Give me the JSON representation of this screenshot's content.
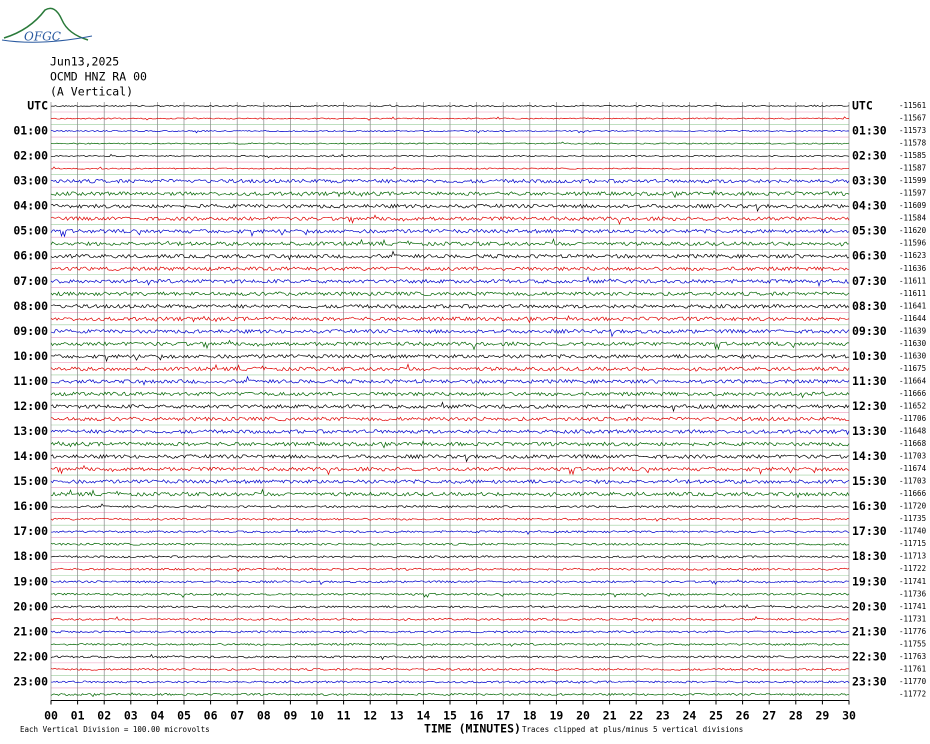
{
  "logo": "OFGC",
  "header": {
    "date": "Jun13,2025",
    "station": "OCMD HNZ RA 00",
    "component": "(A Vertical)"
  },
  "left_labels": [
    "UTC",
    "01:00",
    "02:00",
    "03:00",
    "04:00",
    "05:00",
    "06:00",
    "07:00",
    "08:00",
    "09:00",
    "10:00",
    "11:00",
    "12:00",
    "13:00",
    "14:00",
    "15:00",
    "16:00",
    "17:00",
    "18:00",
    "19:00",
    "20:00",
    "21:00",
    "22:00",
    "23:00"
  ],
  "right_labels": [
    "UTC",
    "01:30",
    "02:30",
    "03:30",
    "04:30",
    "05:30",
    "06:30",
    "07:30",
    "08:30",
    "09:30",
    "10:30",
    "11:30",
    "12:30",
    "13:30",
    "14:30",
    "15:30",
    "16:30",
    "17:30",
    "18:30",
    "19:30",
    "20:30",
    "21:30",
    "22:30",
    "23:30"
  ],
  "row_values": [
    -11561,
    -11567,
    -11573,
    -11578,
    -11585,
    -11587,
    -11599,
    -11597,
    -11609,
    -11584,
    -11620,
    -11596,
    -11623,
    -11636,
    -11611,
    -11611,
    -11641,
    -11644,
    -11639,
    -11630,
    -11630,
    -11675,
    -11664,
    -11666,
    -11652,
    -11706,
    -11648,
    -11668,
    -11703,
    -11674,
    -11703,
    -11666,
    -11720,
    -11735,
    -11740,
    -11715,
    -11713,
    -11722,
    -11741,
    -11736,
    -11741,
    -11731,
    -11776,
    -11755,
    -11763,
    -11761,
    -11770,
    -11772
  ],
  "trace_colors": [
    "#000000",
    "#e00000",
    "#0000cc",
    "#006600"
  ],
  "xaxis": {
    "ticks": [
      "00",
      "01",
      "02",
      "03",
      "04",
      "05",
      "06",
      "07",
      "08",
      "09",
      "10",
      "11",
      "12",
      "13",
      "14",
      "15",
      "16",
      "17",
      "18",
      "19",
      "20",
      "21",
      "22",
      "23",
      "24",
      "25",
      "26",
      "27",
      "28",
      "29",
      "30"
    ],
    "label": "TIME (MINUTES)"
  },
  "footer": {
    "scale": "Each Vertical Division =  100.00 microvolts",
    "clip": "Traces clipped at plus/minus 5 vertical divisions"
  }
}
